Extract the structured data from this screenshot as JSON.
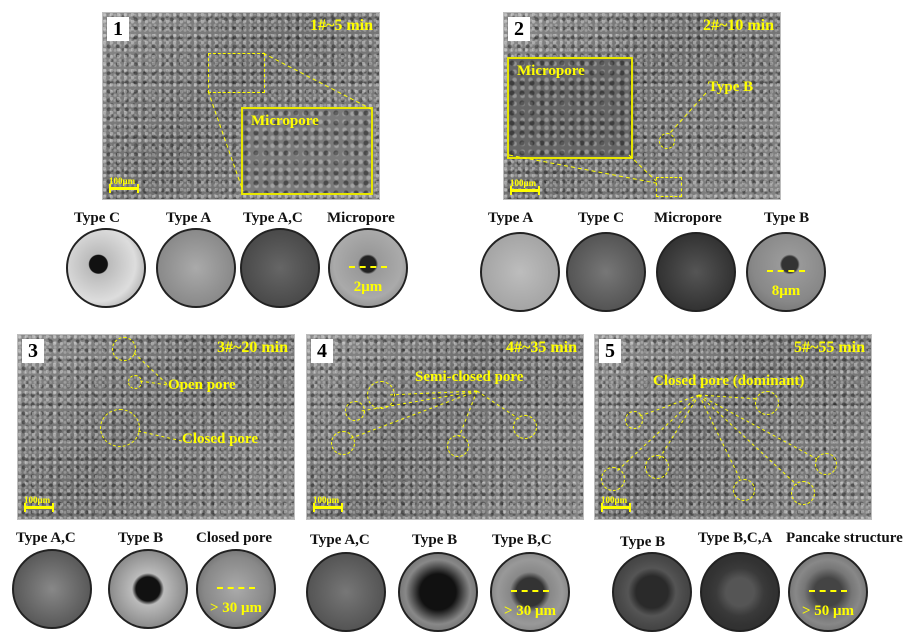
{
  "panels": [
    {
      "number": "1",
      "title": "1#~5 min",
      "inset_label": "Micropore",
      "scale": "100μm"
    },
    {
      "number": "2",
      "title": "2#~10 min",
      "inset_label": "Micropore",
      "annotation": "Type B",
      "scale": "100μm"
    },
    {
      "number": "3",
      "title": "3#~20 min",
      "annotations": [
        "Open pore",
        "Closed pore"
      ],
      "scale": "100μm"
    },
    {
      "number": "4",
      "title": "4#~35 min",
      "annotation": "Semi-closed pore",
      "scale": "100μm"
    },
    {
      "number": "5",
      "title": "5#~55 min",
      "annotation": "Closed pore (dominant)",
      "scale": "100μm"
    }
  ],
  "rows": {
    "p1": {
      "labels": [
        "Type C",
        "Type A",
        "Type A,C",
        "Micropore"
      ],
      "measure": "2μm"
    },
    "p2": {
      "labels": [
        "Type A",
        "Type C",
        "Micropore",
        "Type B"
      ],
      "measure": "8μm"
    },
    "p3": {
      "labels": [
        "Type A,C",
        "Type B",
        "Closed pore"
      ],
      "measure": "> 30 μm"
    },
    "p4": {
      "labels": [
        "Type A,C",
        "Type B",
        "Type B,C"
      ],
      "measure": "> 30 μm"
    },
    "p5": {
      "labels": [
        "Type B",
        "Type B,C,A",
        "Pancake structure"
      ],
      "measure": "> 50 μm"
    }
  }
}
